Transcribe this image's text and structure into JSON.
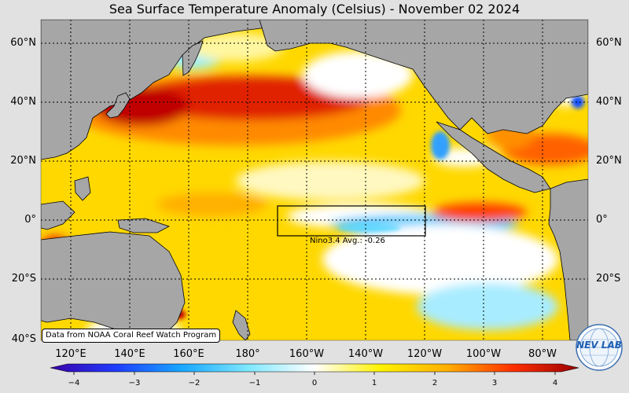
{
  "title": "Sea Surface Temperature Anomaly (Celsius) - November 02 2024",
  "lat_labels": [
    "60°N",
    "40°N",
    "20°N",
    "0°",
    "20°S",
    "40°S"
  ],
  "lon_labels": [
    "120°E",
    "140°E",
    "160°E",
    "180°",
    "160°W",
    "140°W",
    "120°W",
    "100°W",
    "80°W"
  ],
  "colorbar": {
    "ticks": [
      "−4",
      "−3",
      "−2",
      "−1",
      "0",
      "1",
      "2",
      "3",
      "4"
    ],
    "range": [
      -4,
      4
    ],
    "colors": [
      "#3a00a8",
      "#1e3cff",
      "#18a8ff",
      "#7fe8ff",
      "#ffffff",
      "#fff200",
      "#ffb000",
      "#ff3000",
      "#9a0000"
    ]
  },
  "nino_label": "Nino3.4 Avg.: -0.26",
  "credit": "Data from NOAA Coral Reef Watch Program",
  "logo": {
    "text": "NEV LAB",
    "icon": "globe-icon"
  },
  "colors": {
    "land": "#a6a6a6",
    "ocean_base": "#ffd800",
    "background": "#e1e1e1"
  }
}
